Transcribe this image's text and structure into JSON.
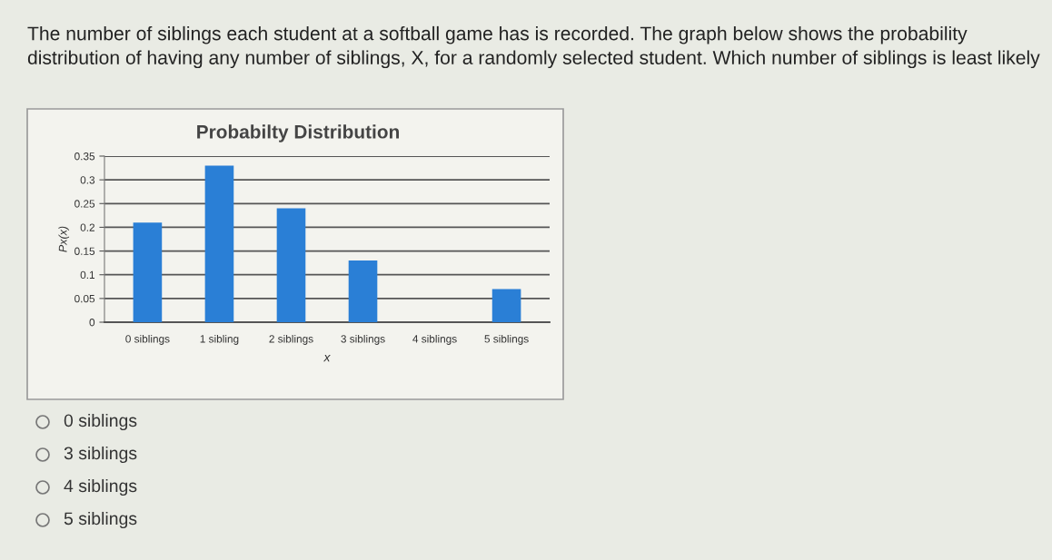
{
  "chart_data": {
    "type": "bar",
    "title": "Probabilty Distribution",
    "xlabel": "x",
    "ylabel": "Px(x)",
    "categories": [
      "0 siblings",
      "1 sibling",
      "2 siblings",
      "3 siblings",
      "4 siblings",
      "5 siblings"
    ],
    "values": [
      0.21,
      0.33,
      0.24,
      0.13,
      0,
      0.07
    ],
    "color": "#2a7fd6",
    "ylim": [
      0,
      0.35
    ],
    "yticks": [
      0,
      0.05,
      0.1,
      0.15,
      0.2,
      0.25,
      0.3,
      0.35
    ],
    "grid": "y",
    "annotations": [
      "The number of siblings each student at a softball game has is recorded. The graph below shows the probability distribution of having any number of siblings, X, for a randomly selected student. Which number of siblings is least likely",
      "0 siblings",
      "3 siblings",
      "4 siblings",
      "5 siblings"
    ]
  }
}
